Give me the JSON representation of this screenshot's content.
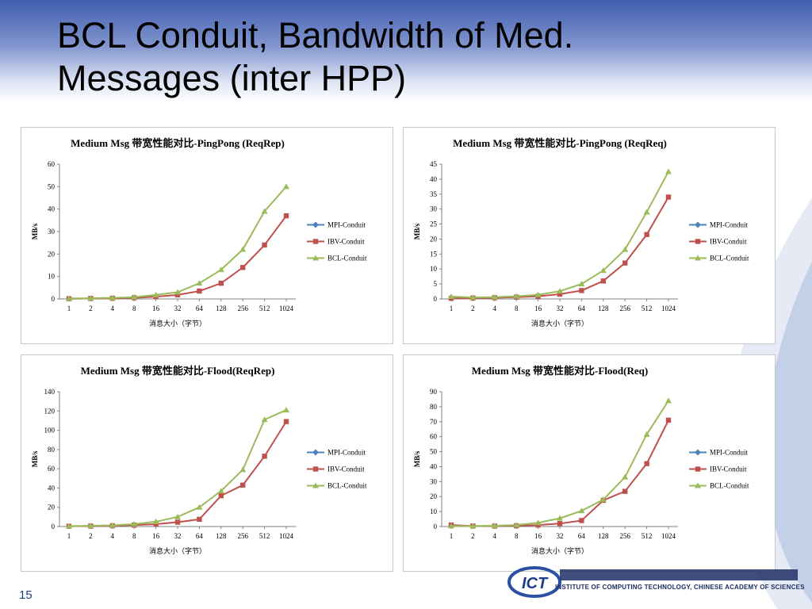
{
  "slide": {
    "title_line1": "BCL Conduit, Bandwidth of Med.",
    "title_line2": "Messages (inter HPP)",
    "page_number": "15",
    "logo_text": "INSTITUTE OF COMPUTING TECHNOLOGY, CHINESE ACADEMY OF SCIENCES",
    "colors": {
      "mpi": "#4f81bd",
      "ibv": "#c0504d",
      "bcl": "#9bbb59",
      "accent": "#3f5cae"
    }
  },
  "chart_data": [
    {
      "type": "line",
      "title": "Medium Msg 带宽性能对比-PingPong (ReqRep)",
      "xlabel": "消息大小（字节）",
      "ylabel": "MB/s",
      "categories": [
        "1",
        "2",
        "4",
        "8",
        "16",
        "32",
        "64",
        "128",
        "256",
        "512",
        "1024"
      ],
      "ylim": [
        0,
        60
      ],
      "yticks": [
        "0",
        "10",
        "20",
        "30",
        "40",
        "50",
        "60"
      ],
      "legend_position": "right",
      "series": [
        {
          "name": "MPI-Conduit",
          "values": [
            null,
            null,
            null,
            null,
            null,
            null,
            null,
            null,
            null,
            null,
            null
          ]
        },
        {
          "name": "IBV-Conduit",
          "values": [
            0.1,
            0.2,
            0.3,
            0.5,
            1,
            1.8,
            3.5,
            7,
            14,
            24,
            37
          ]
        },
        {
          "name": "BCL-Conduit",
          "values": [
            0.2,
            0.3,
            0.5,
            0.8,
            1.8,
            3,
            7,
            13,
            22,
            39,
            50
          ]
        }
      ]
    },
    {
      "type": "line",
      "title": "Medium Msg 带宽性能对比-PingPong (ReqReq)",
      "xlabel": "消息大小（字节）",
      "ylabel": "MB/s",
      "categories": [
        "1",
        "2",
        "4",
        "8",
        "16",
        "32",
        "64",
        "128",
        "256",
        "512",
        "1024"
      ],
      "ylim": [
        0,
        45
      ],
      "yticks": [
        "0",
        "5",
        "10",
        "15",
        "20",
        "25",
        "30",
        "35",
        "40",
        "45"
      ],
      "legend_position": "right",
      "series": [
        {
          "name": "MPI-Conduit",
          "values": [
            null,
            null,
            null,
            null,
            null,
            null,
            null,
            null,
            null,
            null,
            null
          ]
        },
        {
          "name": "IBV-Conduit",
          "values": [
            0.2,
            0.3,
            0.4,
            0.6,
            0.9,
            1.6,
            2.8,
            6,
            12,
            21.5,
            34
          ]
        },
        {
          "name": "BCL-Conduit",
          "values": [
            0.8,
            0.5,
            0.6,
            0.9,
            1.4,
            2.6,
            5,
            9.5,
            16.5,
            29,
            42.5
          ]
        }
      ]
    },
    {
      "type": "line",
      "title": "Medium Msg 带宽性能对比-Flood(ReqRep)",
      "xlabel": "消息大小（字节）",
      "ylabel": "MB/s",
      "categories": [
        "1",
        "2",
        "4",
        "8",
        "16",
        "32",
        "64",
        "128",
        "256",
        "512",
        "1024"
      ],
      "ylim": [
        0,
        140
      ],
      "yticks": [
        "0",
        "20",
        "40",
        "60",
        "80",
        "100",
        "120",
        "140"
      ],
      "legend_position": "right",
      "series": [
        {
          "name": "MPI-Conduit",
          "values": [
            null,
            null,
            null,
            null,
            null,
            null,
            null,
            null,
            null,
            null,
            null
          ]
        },
        {
          "name": "IBV-Conduit",
          "values": [
            0.3,
            0.5,
            0.8,
            1.5,
            2.5,
            4.5,
            7.5,
            32,
            43,
            73,
            109
          ]
        },
        {
          "name": "BCL-Conduit",
          "values": [
            0.4,
            0.8,
            1.2,
            2.5,
            5,
            10,
            20,
            37,
            59,
            111,
            121
          ]
        }
      ]
    },
    {
      "type": "line",
      "title": "Medium Msg 带宽性能对比-Flood(Req)",
      "xlabel": "消息大小（字节）",
      "ylabel": "MB/s",
      "categories": [
        "1",
        "2",
        "4",
        "8",
        "16",
        "32",
        "64",
        "128",
        "256",
        "512",
        "1024"
      ],
      "ylim": [
        0,
        90
      ],
      "yticks": [
        "0",
        "10",
        "20",
        "30",
        "40",
        "50",
        "60",
        "70",
        "80",
        "90"
      ],
      "legend_position": "right",
      "series": [
        {
          "name": "MPI-Conduit",
          "values": [
            null,
            null,
            null,
            null,
            null,
            null,
            null,
            null,
            null,
            null,
            null
          ]
        },
        {
          "name": "IBV-Conduit",
          "values": [
            1,
            0.3,
            0.3,
            0.5,
            1,
            2,
            4,
            17.5,
            23.5,
            42,
            71
          ]
        },
        {
          "name": "BCL-Conduit",
          "values": [
            0.3,
            0.3,
            0.5,
            1,
            2.5,
            5.5,
            10.5,
            18,
            33,
            61.5,
            84
          ]
        }
      ]
    }
  ]
}
